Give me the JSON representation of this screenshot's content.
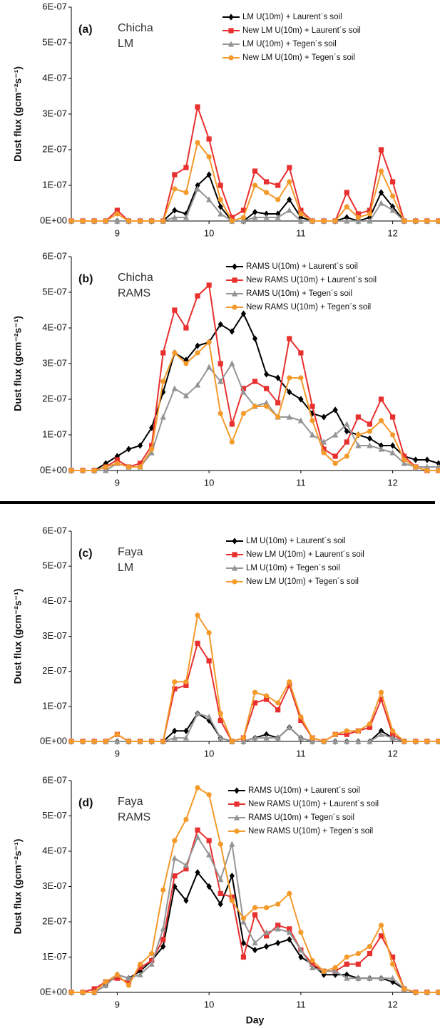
{
  "chart_data": [
    {
      "type": "line",
      "panel_label": "(a)",
      "station": "Chicha",
      "model": "LM",
      "y_label": "Dust flux (gcm⁻²s⁻¹)",
      "xlim": [
        8.5,
        12.5
      ],
      "xticks": [
        9,
        10,
        11,
        12
      ],
      "ylim": [
        0,
        6e-07
      ],
      "yticks": [
        {
          "value": 0,
          "label": "0E+00"
        },
        {
          "value": 1e-07,
          "label": "1E-07"
        },
        {
          "value": 2e-07,
          "label": "2E-07"
        },
        {
          "value": 3e-07,
          "label": "3E-07"
        },
        {
          "value": 4e-07,
          "label": "4E-07"
        },
        {
          "value": 5e-07,
          "label": "5E-07"
        },
        {
          "value": 6e-07,
          "label": "6E-07"
        }
      ],
      "x": [
        8.5,
        8.625,
        8.75,
        8.875,
        9,
        9.125,
        9.25,
        9.375,
        9.5,
        9.625,
        9.75,
        9.875,
        10,
        10.125,
        10.25,
        10.375,
        10.5,
        10.625,
        10.75,
        10.875,
        11,
        11.125,
        11.25,
        11.375,
        11.5,
        11.625,
        11.75,
        11.875,
        12,
        12.125,
        12.25,
        12.375,
        12.5
      ],
      "series": [
        {
          "name": "LM U(10m) + Laurent´s soil",
          "color": "#000000",
          "marker": "diamond",
          "values": [
            0,
            0,
            0,
            0,
            0,
            0,
            0,
            0,
            0,
            3e-08,
            2e-08,
            1e-07,
            1.3e-07,
            4e-08,
            0,
            0,
            2.5e-08,
            2e-08,
            2e-08,
            6e-08,
            1e-08,
            0,
            0,
            0,
            1e-08,
            0,
            1e-08,
            8e-08,
            4e-08,
            0,
            0,
            0,
            0
          ]
        },
        {
          "name": "New LM U(10m) + Laurent´s soil",
          "color": "#e8302f",
          "marker": "square",
          "values": [
            0,
            0,
            0,
            0,
            3e-08,
            0,
            0,
            0,
            0,
            1.3e-07,
            1.5e-07,
            3.2e-07,
            2.3e-07,
            1e-07,
            1e-08,
            3e-08,
            1.4e-07,
            1.1e-07,
            1e-07,
            1.5e-07,
            3e-08,
            0,
            0,
            0,
            8e-08,
            2e-08,
            3e-08,
            2e-07,
            1.1e-07,
            0,
            0,
            0,
            0
          ]
        },
        {
          "name": "LM U(10m) + Tegen´s soil",
          "color": "#959595",
          "marker": "triangle",
          "values": [
            0,
            0,
            0,
            0,
            0,
            0,
            0,
            0,
            0,
            1e-08,
            1e-08,
            9e-08,
            6e-08,
            2e-08,
            0,
            0,
            1e-08,
            1e-08,
            1e-08,
            3e-08,
            0,
            0,
            0,
            0,
            0,
            0,
            0,
            5e-08,
            3e-08,
            0,
            0,
            0,
            0
          ]
        },
        {
          "name": "New LM U(10m) + Tegen´s soil",
          "color": "#f39a2a",
          "marker": "circle",
          "values": [
            0,
            0,
            0,
            0,
            2e-08,
            0,
            0,
            0,
            0,
            9e-08,
            8e-08,
            2.2e-07,
            1.8e-07,
            6e-08,
            0,
            1e-08,
            1e-07,
            8e-08,
            6e-08,
            1.1e-07,
            2e-08,
            0,
            0,
            0,
            4e-08,
            1e-08,
            2e-08,
            1.4e-07,
            7e-08,
            0,
            0,
            0,
            0
          ]
        }
      ]
    },
    {
      "type": "line",
      "panel_label": "(b)",
      "station": "Chicha",
      "model": "RAMS",
      "y_label": "Dust flux (gcm⁻²s⁻¹)",
      "xlim": [
        8.5,
        12.5
      ],
      "xticks": [
        9,
        10,
        11,
        12
      ],
      "ylim": [
        0,
        6e-07
      ],
      "yticks": [
        {
          "value": 0,
          "label": "0E+00"
        },
        {
          "value": 1e-07,
          "label": "1E-07"
        },
        {
          "value": 2e-07,
          "label": "2E-07"
        },
        {
          "value": 3e-07,
          "label": "3E-07"
        },
        {
          "value": 4e-07,
          "label": "4E-07"
        },
        {
          "value": 5e-07,
          "label": "5E-07"
        },
        {
          "value": 6e-07,
          "label": "6E-07"
        }
      ],
      "x": [
        8.5,
        8.625,
        8.75,
        8.875,
        9,
        9.125,
        9.25,
        9.375,
        9.5,
        9.625,
        9.75,
        9.875,
        10,
        10.125,
        10.25,
        10.375,
        10.5,
        10.625,
        10.75,
        10.875,
        11,
        11.125,
        11.25,
        11.375,
        11.5,
        11.625,
        11.75,
        11.875,
        12,
        12.125,
        12.25,
        12.375,
        12.5
      ],
      "series": [
        {
          "name": "RAMS U(10m) + Laurent´s soil",
          "color": "#000000",
          "marker": "diamond",
          "values": [
            0,
            0,
            0,
            2e-08,
            4e-08,
            6e-08,
            7e-08,
            1.2e-07,
            2.2e-07,
            3.3e-07,
            3.1e-07,
            3.5e-07,
            3.6e-07,
            4.1e-07,
            3.9e-07,
            4.4e-07,
            3.7e-07,
            2.7e-07,
            2.6e-07,
            2.2e-07,
            2e-07,
            1.6e-07,
            1.5e-07,
            1.7e-07,
            1.1e-07,
            1e-07,
            9e-08,
            7e-08,
            7e-08,
            4e-08,
            3e-08,
            3e-08,
            2e-08
          ]
        },
        {
          "name": "New RAMS U(10m) + Laurent´s soil",
          "color": "#e8302f",
          "marker": "square",
          "values": [
            0,
            0,
            0,
            1e-08,
            3e-08,
            1e-08,
            2e-08,
            7e-08,
            3.3e-07,
            4.5e-07,
            4e-07,
            4.9e-07,
            5.2e-07,
            3e-07,
            1.3e-07,
            2.3e-07,
            2.5e-07,
            2.3e-07,
            1.9e-07,
            3.7e-07,
            3.3e-07,
            1.8e-07,
            6e-08,
            4e-08,
            8e-08,
            1.5e-07,
            1.3e-07,
            2e-07,
            1.5e-07,
            4e-08,
            1e-08,
            0,
            0
          ]
        },
        {
          "name": "RAMS U(10m) + Tegen´s soil",
          "color": "#959595",
          "marker": "triangle",
          "values": [
            0,
            0,
            0,
            0,
            2e-08,
            1e-08,
            1e-08,
            5e-08,
            1.5e-07,
            2.3e-07,
            2.1e-07,
            2.4e-07,
            2.9e-07,
            2.5e-07,
            3e-07,
            2.2e-07,
            1.8e-07,
            1.9e-07,
            1.5e-07,
            1.5e-07,
            1.4e-07,
            1e-07,
            8e-08,
            1e-07,
            1.3e-07,
            7e-08,
            7e-08,
            6e-08,
            5e-08,
            2e-08,
            1e-08,
            1e-08,
            1e-08
          ]
        },
        {
          "name": "New RAMS U(10m) + Tegen´s soil",
          "color": "#f39a2a",
          "marker": "circle",
          "values": [
            0,
            0,
            0,
            1e-08,
            2e-08,
            1e-08,
            1e-08,
            6e-08,
            2.5e-07,
            3.3e-07,
            3e-07,
            3.3e-07,
            3.6e-07,
            1.6e-07,
            8e-08,
            1.6e-07,
            1.8e-07,
            1.8e-07,
            1.5e-07,
            2.6e-07,
            2.6e-07,
            1.4e-07,
            5e-08,
            2e-08,
            4e-08,
            1e-07,
            1.1e-07,
            1.4e-07,
            1e-07,
            3e-08,
            1e-08,
            0,
            0
          ]
        }
      ]
    },
    {
      "type": "line",
      "panel_label": "(c)",
      "station": "Faya",
      "model": "LM",
      "y_label": "Dust flux (gcm⁻²s⁻¹)",
      "xlim": [
        8.5,
        12.5
      ],
      "xticks": [
        9,
        10,
        11,
        12
      ],
      "ylim": [
        0,
        6e-07
      ],
      "yticks": [
        {
          "value": 0,
          "label": "0E+00"
        },
        {
          "value": 1e-07,
          "label": "1E-07"
        },
        {
          "value": 2e-07,
          "label": "2E-07"
        },
        {
          "value": 3e-07,
          "label": "3E-07"
        },
        {
          "value": 4e-07,
          "label": "4E-07"
        },
        {
          "value": 5e-07,
          "label": "5E-07"
        },
        {
          "value": 6e-07,
          "label": "6E-07"
        }
      ],
      "x": [
        8.5,
        8.625,
        8.75,
        8.875,
        9,
        9.125,
        9.25,
        9.375,
        9.5,
        9.625,
        9.75,
        9.875,
        10,
        10.125,
        10.25,
        10.375,
        10.5,
        10.625,
        10.75,
        10.875,
        11,
        11.125,
        11.25,
        11.375,
        11.5,
        11.625,
        11.75,
        11.875,
        12,
        12.125,
        12.25,
        12.375,
        12.5
      ],
      "series": [
        {
          "name": "LM U(10m) + Laurent´s soil",
          "color": "#000000",
          "marker": "diamond",
          "values": [
            0,
            0,
            0,
            0,
            0,
            0,
            0,
            0,
            0,
            3e-08,
            3e-08,
            8e-08,
            6e-08,
            1e-08,
            0,
            0,
            1e-08,
            2e-08,
            1e-08,
            4e-08,
            1e-08,
            0,
            0,
            0,
            0,
            0,
            0,
            3e-08,
            1e-08,
            0,
            0,
            0,
            0
          ]
        },
        {
          "name": "New LM U(10m) + Laurent´s soil",
          "color": "#e8302f",
          "marker": "square",
          "values": [
            0,
            0,
            0,
            0,
            2e-08,
            0,
            0,
            0,
            0,
            1.5e-07,
            1.6e-07,
            2.8e-07,
            2.3e-07,
            6e-08,
            0,
            1e-08,
            1.1e-07,
            1.2e-07,
            9e-08,
            1.6e-07,
            6e-08,
            1e-08,
            0,
            2e-08,
            2e-08,
            3e-08,
            4e-08,
            1.2e-07,
            2e-08,
            0,
            0,
            0,
            0
          ]
        },
        {
          "name": "LM U(10m) + Tegen´s soil",
          "color": "#959595",
          "marker": "triangle",
          "values": [
            0,
            0,
            0,
            0,
            0,
            0,
            0,
            0,
            0,
            1e-08,
            1e-08,
            8e-08,
            7e-08,
            1e-08,
            0,
            0,
            1e-08,
            1e-08,
            1e-08,
            4e-08,
            1e-08,
            0,
            0,
            0,
            0,
            0,
            0,
            2e-08,
            1e-08,
            0,
            0,
            0,
            0
          ]
        },
        {
          "name": "New LM U(10m) + Tegen´s soil",
          "color": "#f39a2a",
          "marker": "circle",
          "values": [
            0,
            0,
            0,
            0,
            2e-08,
            0,
            0,
            0,
            0,
            1.7e-07,
            1.7e-07,
            3.6e-07,
            3.1e-07,
            8e-08,
            0,
            1e-08,
            1.4e-07,
            1.3e-07,
            1.1e-07,
            1.7e-07,
            7e-08,
            1e-08,
            0,
            2e-08,
            3e-08,
            3e-08,
            5e-08,
            1.4e-07,
            3e-08,
            0,
            0,
            0,
            0
          ]
        }
      ]
    },
    {
      "type": "line",
      "panel_label": "(d)",
      "station": "Faya",
      "model": "RAMS",
      "y_label": "Dust flux (gcm⁻²s⁻¹)",
      "x_label": "Day",
      "xlim": [
        8.5,
        12.5
      ],
      "xticks": [
        9,
        10,
        11,
        12
      ],
      "ylim": [
        0,
        6e-07
      ],
      "yticks": [
        {
          "value": 0,
          "label": "0E+00"
        },
        {
          "value": 1e-07,
          "label": "1E-07"
        },
        {
          "value": 2e-07,
          "label": "2E-07"
        },
        {
          "value": 3e-07,
          "label": "3E-07"
        },
        {
          "value": 4e-07,
          "label": "4E-07"
        },
        {
          "value": 5e-07,
          "label": "5E-07"
        },
        {
          "value": 6e-07,
          "label": "6E-07"
        }
      ],
      "x": [
        8.5,
        8.625,
        8.75,
        8.875,
        9,
        9.125,
        9.25,
        9.375,
        9.5,
        9.625,
        9.75,
        9.875,
        10,
        10.125,
        10.25,
        10.375,
        10.5,
        10.625,
        10.75,
        10.875,
        11,
        11.125,
        11.25,
        11.375,
        11.5,
        11.625,
        11.75,
        11.875,
        12,
        12.125,
        12.25,
        12.375,
        12.5
      ],
      "series": [
        {
          "name": "RAMS U(10m) + Laurent´s soil",
          "color": "#000000",
          "marker": "diamond",
          "values": [
            0,
            0,
            0,
            2e-08,
            5e-08,
            4e-08,
            6e-08,
            9e-08,
            1.3e-07,
            3e-07,
            2.6e-07,
            3.4e-07,
            3e-07,
            2.5e-07,
            3.3e-07,
            1.4e-07,
            1.2e-07,
            1.3e-07,
            1.4e-07,
            1.5e-07,
            1e-07,
            8e-08,
            5e-08,
            5e-08,
            5e-08,
            4e-08,
            4e-08,
            4e-08,
            3e-08,
            1e-08,
            0,
            0,
            0
          ]
        },
        {
          "name": "New RAMS U(10m) + Laurent´s soil",
          "color": "#e8302f",
          "marker": "square",
          "values": [
            0,
            0,
            1e-08,
            3e-08,
            4e-08,
            3e-08,
            7e-08,
            9e-08,
            1.5e-07,
            3.3e-07,
            3.5e-07,
            4.6e-07,
            4.3e-07,
            2.8e-07,
            2.7e-07,
            1e-07,
            2.2e-07,
            1.6e-07,
            1.9e-07,
            1.8e-07,
            1.2e-07,
            8e-08,
            6e-08,
            6e-08,
            8e-08,
            8e-08,
            1.1e-07,
            1.6e-07,
            1e-07,
            1e-08,
            0,
            0,
            0
          ]
        },
        {
          "name": "RAMS U(10m) + Tegen´s soil",
          "color": "#959595",
          "marker": "triangle",
          "values": [
            0,
            0,
            0,
            2e-08,
            5e-08,
            4e-08,
            5e-08,
            8e-08,
            1.8e-07,
            3.8e-07,
            3.6e-07,
            4.4e-07,
            3.9e-07,
            3.2e-07,
            4.2e-07,
            2e-07,
            1.4e-07,
            1.7e-07,
            1.8e-07,
            1.7e-07,
            1.2e-07,
            7e-08,
            6e-08,
            6e-08,
            4e-08,
            4e-08,
            4e-08,
            4e-08,
            4e-08,
            1e-08,
            0,
            0,
            0
          ]
        },
        {
          "name": "New RAMS U(10m) + Tegen´s soil",
          "color": "#f39a2a",
          "marker": "circle",
          "values": [
            0,
            0,
            0,
            3e-08,
            5e-08,
            2e-08,
            8e-08,
            1.1e-07,
            2.9e-07,
            4.3e-07,
            4.9e-07,
            5.8e-07,
            5.6e-07,
            4.2e-07,
            2.6e-07,
            2.1e-07,
            2.4e-07,
            2.4e-07,
            2.5e-07,
            2.8e-07,
            1.7e-07,
            9e-08,
            6e-08,
            7e-08,
            1e-07,
            1.1e-07,
            1.3e-07,
            1.9e-07,
            8e-08,
            1e-08,
            0,
            0,
            0
          ]
        }
      ]
    }
  ]
}
